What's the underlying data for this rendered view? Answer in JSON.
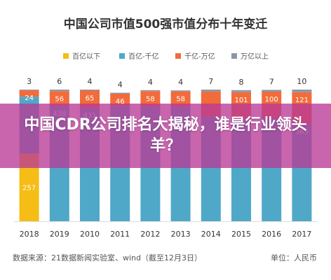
{
  "chart_data": {
    "type": "bar",
    "stacked": true,
    "title": "中国公司市值500强市值分布十年变迁",
    "categories": [
      "2018",
      "2019",
      "2010",
      "2011",
      "2012",
      "2013",
      "2014",
      "2015",
      "2016",
      "2017"
    ],
    "series": [
      {
        "name": "百亿以下",
        "color": "#f6bd16",
        "values": [
          257,
          0,
          0,
          0,
          0,
          0,
          0,
          0,
          0,
          0
        ]
      },
      {
        "name": "百亿-千亿",
        "color": "#4fa8c8",
        "values": [
          216,
          438,
          431,
          438,
          436,
          435,
          398,
          389,
          392,
          369
        ]
      },
      {
        "name": "千亿-万亿",
        "color": "#f26b3a",
        "values": [
          24,
          56,
          65,
          46,
          58,
          58,
          95,
          101,
          100,
          121
        ]
      },
      {
        "name": "万亿以上",
        "color": "#8c96a6",
        "values": [
          3,
          6,
          4,
          4,
          4,
          4,
          7,
          8,
          7,
          10
        ]
      }
    ],
    "bar_labels": [
      [
        "257",
        "",
        "24",
        "3"
      ],
      [
        "",
        "438",
        "56",
        "6"
      ],
      [
        "",
        "431",
        "65",
        "4"
      ],
      [
        "",
        "",
        "46",
        "4"
      ],
      [
        "",
        "",
        "58",
        "4"
      ],
      [
        "",
        "",
        "58",
        "4"
      ],
      [
        "",
        "",
        "",
        "7"
      ],
      [
        "",
        "",
        "101",
        "8"
      ],
      [
        "",
        "",
        "100",
        "7"
      ],
      [
        "",
        "369",
        "121",
        "10"
      ]
    ],
    "ylim": [
      0,
      500
    ],
    "legend_position": "top",
    "source": "数据来源：21数据新闻实验室、wind（截至12月3日）",
    "unit": "单位：人民币"
  },
  "overlay": {
    "title": "中国CDR公司排名大揭秘，谁是行业领头羊？"
  }
}
